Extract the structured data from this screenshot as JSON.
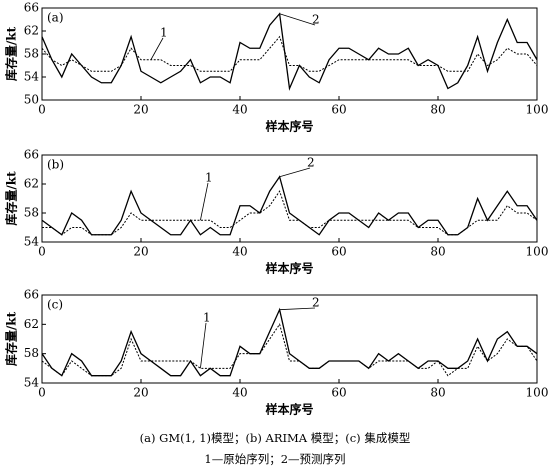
{
  "chart_data": [
    {
      "type": "line",
      "title": "(a)",
      "xlabel": "样本序号",
      "ylabel": "库存量/kt",
      "xlim": [
        0,
        100
      ],
      "ylim": [
        50,
        66
      ],
      "xticks": [
        0,
        20,
        40,
        60,
        80,
        100
      ],
      "yticks": [
        50,
        54,
        58,
        62,
        66
      ],
      "x": [
        0,
        2,
        4,
        6,
        8,
        10,
        12,
        14,
        16,
        18,
        20,
        22,
        24,
        26,
        28,
        30,
        32,
        34,
        36,
        38,
        40,
        42,
        44,
        46,
        48,
        50,
        52,
        54,
        56,
        58,
        60,
        62,
        64,
        66,
        68,
        70,
        72,
        74,
        76,
        78,
        80,
        82,
        84,
        86,
        88,
        90,
        92,
        94,
        96,
        98,
        100
      ],
      "series": [
        {
          "name": "1",
          "color": "#000000",
          "dashed": true,
          "values": [
            59,
            57,
            56,
            57,
            56,
            55,
            55,
            55,
            56,
            59,
            57,
            57,
            57,
            56,
            56,
            56,
            55,
            55,
            55,
            55,
            57,
            57,
            57,
            59,
            61,
            56,
            56,
            55,
            55,
            56,
            57,
            57,
            57,
            57,
            57,
            57,
            57,
            57,
            56,
            56,
            56,
            55,
            55,
            55,
            58,
            56,
            57,
            59,
            58,
            58,
            56
          ]
        },
        {
          "name": "2",
          "color": "#000000",
          "dashed": false,
          "values": [
            61,
            57,
            54,
            58,
            56,
            54,
            53,
            53,
            56,
            61,
            55,
            54,
            53,
            54,
            55,
            57,
            53,
            54,
            54,
            53,
            60,
            59,
            59,
            63,
            65,
            52,
            56,
            54,
            53,
            57,
            59,
            59,
            58,
            57,
            59,
            58,
            58,
            59,
            56,
            57,
            56,
            52,
            53,
            56,
            61,
            55,
            60,
            64,
            60,
            60,
            57
          ]
        }
      ]
    },
    {
      "type": "line",
      "title": "(b)",
      "xlabel": "样本序号",
      "ylabel": "库存量/kt",
      "xlim": [
        0,
        100
      ],
      "ylim": [
        54,
        66
      ],
      "xticks": [
        0,
        20,
        40,
        60,
        80,
        100
      ],
      "yticks": [
        54,
        58,
        62,
        66
      ],
      "x": [
        0,
        2,
        4,
        6,
        8,
        10,
        12,
        14,
        16,
        18,
        20,
        22,
        24,
        26,
        28,
        30,
        32,
        34,
        36,
        38,
        40,
        42,
        44,
        46,
        48,
        50,
        52,
        54,
        56,
        58,
        60,
        62,
        64,
        66,
        68,
        70,
        72,
        74,
        76,
        78,
        80,
        82,
        84,
        86,
        88,
        90,
        92,
        94,
        96,
        98,
        100
      ],
      "series": [
        {
          "name": "1",
          "color": "#000000",
          "dashed": true,
          "values": [
            56,
            56,
            55,
            56,
            56,
            55,
            55,
            55,
            56,
            58,
            57,
            57,
            57,
            57,
            57,
            57,
            57,
            57,
            56,
            56,
            57,
            58,
            58,
            59,
            61,
            57,
            57,
            56,
            56,
            57,
            57,
            57,
            57,
            57,
            57,
            57,
            57,
            57,
            56,
            56,
            56,
            55,
            55,
            56,
            57,
            57,
            57,
            59,
            58,
            58,
            57
          ]
        },
        {
          "name": "2",
          "color": "#000000",
          "dashed": false,
          "values": [
            57,
            56,
            55,
            58,
            57,
            55,
            55,
            55,
            57,
            61,
            58,
            57,
            56,
            55,
            55,
            57,
            55,
            56,
            55,
            55,
            59,
            59,
            58,
            61,
            63,
            58,
            57,
            56,
            55,
            57,
            58,
            58,
            57,
            56,
            58,
            57,
            58,
            58,
            56,
            57,
            57,
            55,
            55,
            56,
            60,
            57,
            59,
            61,
            59,
            59,
            57
          ]
        }
      ]
    },
    {
      "type": "line",
      "title": "(c)",
      "xlabel": "样本序号",
      "ylabel": "库存量/kt",
      "xlim": [
        0,
        100
      ],
      "ylim": [
        54,
        66
      ],
      "xticks": [
        0,
        20,
        40,
        60,
        80,
        100
      ],
      "yticks": [
        54,
        58,
        62,
        66
      ],
      "x": [
        0,
        2,
        4,
        6,
        8,
        10,
        12,
        14,
        16,
        18,
        20,
        22,
        24,
        26,
        28,
        30,
        32,
        34,
        36,
        38,
        40,
        42,
        44,
        46,
        48,
        50,
        52,
        54,
        56,
        58,
        60,
        62,
        64,
        66,
        68,
        70,
        72,
        74,
        76,
        78,
        80,
        82,
        84,
        86,
        88,
        90,
        92,
        94,
        96,
        98,
        100
      ],
      "series": [
        {
          "name": "1",
          "color": "#000000",
          "dashed": true,
          "values": [
            57,
            56,
            55,
            57,
            56,
            55,
            55,
            55,
            56,
            60,
            57,
            57,
            57,
            57,
            57,
            57,
            56,
            56,
            56,
            56,
            58,
            58,
            58,
            60,
            62,
            57,
            57,
            56,
            56,
            57,
            57,
            57,
            57,
            56,
            57,
            57,
            57,
            57,
            56,
            56,
            57,
            55,
            56,
            56,
            59,
            57,
            58,
            60,
            59,
            59,
            57
          ]
        },
        {
          "name": "2",
          "color": "#000000",
          "dashed": false,
          "values": [
            58,
            56,
            55,
            58,
            57,
            55,
            55,
            55,
            57,
            61,
            58,
            57,
            56,
            55,
            55,
            57,
            55,
            56,
            55,
            55,
            59,
            58,
            58,
            61,
            64,
            58,
            57,
            56,
            56,
            57,
            57,
            57,
            57,
            56,
            58,
            57,
            58,
            57,
            56,
            57,
            57,
            56,
            56,
            57,
            60,
            57,
            60,
            61,
            59,
            59,
            58
          ]
        }
      ]
    }
  ],
  "caption": [
    "(a) GM(1, 1)模型；(b) ARIMA 模型；(c) 集成模型",
    "1—原始序列；2—预测序列"
  ]
}
